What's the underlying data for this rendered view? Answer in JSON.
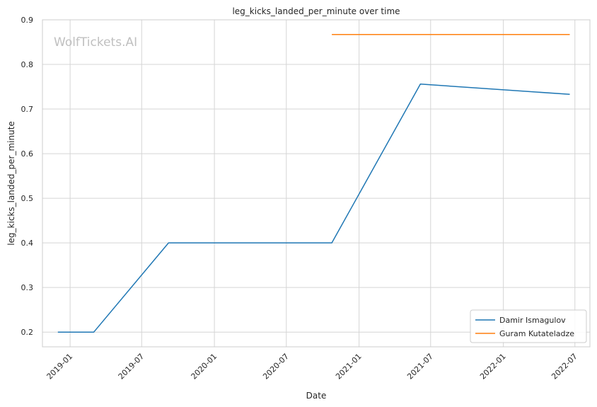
{
  "watermark": "WolfTickets.AI",
  "chart_data": {
    "type": "line",
    "title": "leg_kicks_landed_per_minute over time",
    "xlabel": "Date",
    "ylabel": "leg_kicks_landed_per_minute",
    "xlim": [
      "2018-10-23",
      "2022-08-08"
    ],
    "ylim": [
      0.167,
      0.9
    ],
    "yticks": [
      0.2,
      0.3,
      0.4,
      0.5,
      0.6,
      0.7,
      0.8,
      0.9
    ],
    "xticks": [
      "2019-01",
      "2019-07",
      "2020-01",
      "2020-07",
      "2021-01",
      "2021-07",
      "2022-01",
      "2022-07"
    ],
    "grid": true,
    "legend_position": "bottom-right",
    "series": [
      {
        "name": "Damir Ismagulov",
        "color": "#1f77b4",
        "points": [
          {
            "x": "2018-12-01",
            "y": 0.2
          },
          {
            "x": "2019-03-02",
            "y": 0.2
          },
          {
            "x": "2019-09-07",
            "y": 0.4
          },
          {
            "x": "2020-10-24",
            "y": 0.4
          },
          {
            "x": "2021-06-05",
            "y": 0.756
          },
          {
            "x": "2022-06-18",
            "y": 0.733
          }
        ]
      },
      {
        "name": "Guram Kutateladze",
        "color": "#ff7f0e",
        "points": [
          {
            "x": "2020-10-24",
            "y": 0.867
          },
          {
            "x": "2022-06-18",
            "y": 0.867
          }
        ]
      }
    ]
  }
}
